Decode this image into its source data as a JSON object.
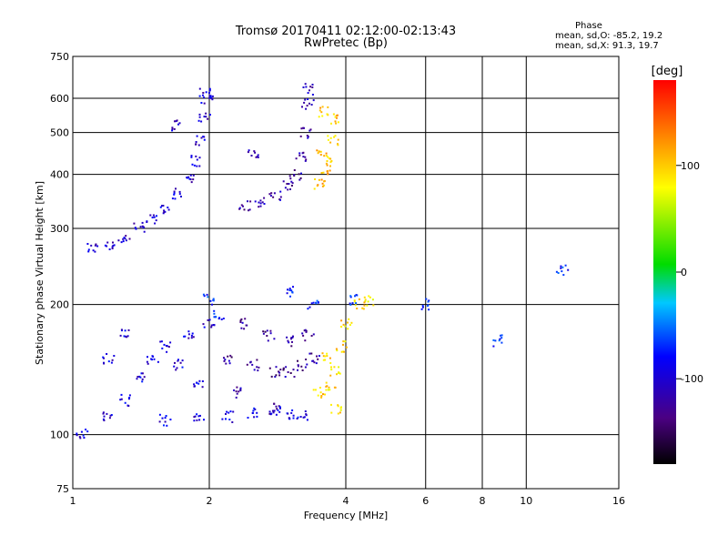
{
  "header": {
    "title_line1": "Tromsø 20170411 02:12:00-02:13:43",
    "title_line2": "RwPretec (Bp)",
    "phase_heading": "Phase",
    "phase_o": "mean, sd,O: -85.2, 19.2",
    "phase_x": "mean, sd,X:  91.3, 19.7"
  },
  "chart_data": {
    "type": "scatter",
    "xlabel": "Frequency [MHz]",
    "ylabel": "Stationary phase Virtual Height [km]",
    "xscale": "log",
    "yscale": "log",
    "xlim": [
      1,
      16
    ],
    "ylim": [
      75,
      750
    ],
    "x_ticks": [
      1,
      2,
      4,
      6,
      8,
      10,
      16
    ],
    "y_ticks": [
      75,
      100,
      200,
      300,
      400,
      500,
      600,
      750
    ],
    "grid": true,
    "colorbar": {
      "label": "[deg]",
      "range": [
        -180,
        180
      ],
      "ticks": [
        100,
        0,
        -100
      ]
    },
    "clusters": [
      {
        "name": "f-trace-low",
        "points": [
          [
            1.1,
            270
          ],
          [
            1.2,
            275
          ],
          [
            1.3,
            285
          ],
          [
            1.4,
            300
          ],
          [
            1.5,
            315
          ],
          [
            1.6,
            335
          ],
          [
            1.7,
            360
          ],
          [
            1.8,
            395
          ],
          [
            1.85,
            430
          ],
          [
            1.9,
            480
          ],
          [
            1.95,
            540
          ],
          [
            1.98,
            600
          ],
          [
            1.95,
            620
          ],
          [
            1.7,
            520
          ]
        ],
        "phase": -110
      },
      {
        "name": "f-trace-mid",
        "points": [
          [
            2.4,
            340
          ],
          [
            2.6,
            345
          ],
          [
            2.8,
            355
          ],
          [
            3.0,
            375
          ],
          [
            3.1,
            400
          ],
          [
            3.2,
            440
          ],
          [
            3.25,
            500
          ],
          [
            3.3,
            580
          ],
          [
            3.3,
            630
          ],
          [
            2.5,
            450
          ]
        ],
        "phase": -125
      },
      {
        "name": "f-trace-x",
        "points": [
          [
            3.5,
            380
          ],
          [
            3.6,
            400
          ],
          [
            3.7,
            430
          ],
          [
            3.75,
            480
          ],
          [
            3.8,
            540
          ],
          [
            3.6,
            560
          ],
          [
            3.55,
            450
          ]
        ],
        "phase": 105
      },
      {
        "name": "e-region-low",
        "points": [
          [
            1.05,
            100
          ],
          [
            1.2,
            110
          ],
          [
            1.3,
            120
          ],
          [
            1.4,
            135
          ],
          [
            1.5,
            150
          ],
          [
            1.6,
            160
          ],
          [
            1.8,
            170
          ],
          [
            2.0,
            180
          ],
          [
            1.7,
            145
          ],
          [
            1.9,
            130
          ],
          [
            1.3,
            170
          ],
          [
            1.2,
            150
          ]
        ],
        "phase": -105
      },
      {
        "name": "e-region-mid",
        "points": [
          [
            2.2,
            150
          ],
          [
            2.5,
            145
          ],
          [
            2.8,
            140
          ],
          [
            3.0,
            140
          ],
          [
            3.2,
            145
          ],
          [
            3.4,
            150
          ],
          [
            2.4,
            180
          ],
          [
            2.7,
            170
          ],
          [
            3.0,
            165
          ],
          [
            3.3,
            170
          ],
          [
            2.3,
            125
          ],
          [
            2.8,
            115
          ]
        ],
        "phase": -130
      },
      {
        "name": "e-region-x",
        "points": [
          [
            3.5,
            125
          ],
          [
            3.7,
            130
          ],
          [
            3.8,
            140
          ],
          [
            3.9,
            160
          ],
          [
            4.0,
            180
          ],
          [
            4.3,
            200
          ],
          [
            4.5,
            205
          ],
          [
            3.6,
            150
          ],
          [
            3.8,
            115
          ]
        ],
        "phase": 95
      },
      {
        "name": "es-trace",
        "points": [
          [
            1.6,
            108
          ],
          [
            1.9,
            110
          ],
          [
            2.2,
            110
          ],
          [
            2.5,
            112
          ],
          [
            2.8,
            113
          ],
          [
            3.0,
            112
          ],
          [
            3.2,
            110
          ]
        ],
        "phase": -100
      },
      {
        "name": "scattered",
        "points": [
          [
            4.2,
            205
          ],
          [
            3.4,
            200
          ],
          [
            3.0,
            215
          ],
          [
            2.1,
            190
          ],
          [
            2.0,
            205
          ],
          [
            6.0,
            200
          ],
          [
            12.0,
            240
          ],
          [
            8.7,
            165
          ]
        ],
        "phase": -80
      }
    ]
  }
}
